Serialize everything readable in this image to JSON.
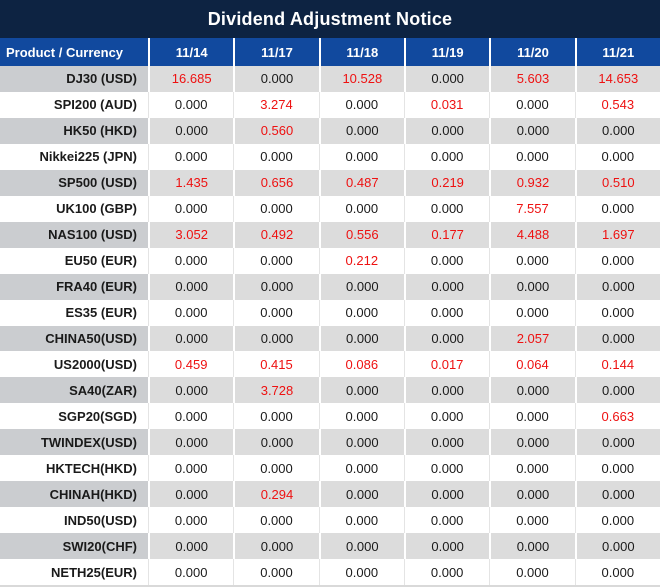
{
  "title": "Dividend Adjustment Notice",
  "colors": {
    "title_bar_bg": "#0d2342",
    "header_row_bg": "#11499e",
    "header_text": "#ffffff",
    "stripe_product_bg": "#cbcdd0",
    "stripe_value_bg": "#dcdcdc",
    "body_text": "#1a1a1a",
    "nonzero_value_text": "#ee1111"
  },
  "table": {
    "product_header": "Product / Currency",
    "date_headers": [
      "11/14",
      "11/17",
      "11/18",
      "11/19",
      "11/20",
      "11/21"
    ],
    "zero_display": "0.000",
    "rows": [
      {
        "product": "DJ30 (USD)",
        "values": [
          "16.685",
          "0.000",
          "10.528",
          "0.000",
          "5.603",
          "14.653"
        ]
      },
      {
        "product": "SPI200 (AUD)",
        "values": [
          "0.000",
          "3.274",
          "0.000",
          "0.031",
          "0.000",
          "0.543"
        ]
      },
      {
        "product": "HK50 (HKD)",
        "values": [
          "0.000",
          "0.560",
          "0.000",
          "0.000",
          "0.000",
          "0.000"
        ]
      },
      {
        "product": "Nikkei225 (JPN)",
        "values": [
          "0.000",
          "0.000",
          "0.000",
          "0.000",
          "0.000",
          "0.000"
        ]
      },
      {
        "product": "SP500 (USD)",
        "values": [
          "1.435",
          "0.656",
          "0.487",
          "0.219",
          "0.932",
          "0.510"
        ]
      },
      {
        "product": "UK100 (GBP)",
        "values": [
          "0.000",
          "0.000",
          "0.000",
          "0.000",
          "7.557",
          "0.000"
        ]
      },
      {
        "product": "NAS100 (USD)",
        "values": [
          "3.052",
          "0.492",
          "0.556",
          "0.177",
          "4.488",
          "1.697"
        ]
      },
      {
        "product": "EU50 (EUR)",
        "values": [
          "0.000",
          "0.000",
          "0.212",
          "0.000",
          "0.000",
          "0.000"
        ]
      },
      {
        "product": "FRA40 (EUR)",
        "values": [
          "0.000",
          "0.000",
          "0.000",
          "0.000",
          "0.000",
          "0.000"
        ]
      },
      {
        "product": "ES35 (EUR)",
        "values": [
          "0.000",
          "0.000",
          "0.000",
          "0.000",
          "0.000",
          "0.000"
        ]
      },
      {
        "product": "CHINA50(USD)",
        "values": [
          "0.000",
          "0.000",
          "0.000",
          "0.000",
          "2.057",
          "0.000"
        ]
      },
      {
        "product": "US2000(USD)",
        "values": [
          "0.459",
          "0.415",
          "0.086",
          "0.017",
          "0.064",
          "0.144"
        ]
      },
      {
        "product": "SA40(ZAR)",
        "values": [
          "0.000",
          "3.728",
          "0.000",
          "0.000",
          "0.000",
          "0.000"
        ]
      },
      {
        "product": "SGP20(SGD)",
        "values": [
          "0.000",
          "0.000",
          "0.000",
          "0.000",
          "0.000",
          "0.663"
        ]
      },
      {
        "product": "TWINDEX(USD)",
        "values": [
          "0.000",
          "0.000",
          "0.000",
          "0.000",
          "0.000",
          "0.000"
        ]
      },
      {
        "product": "HKTECH(HKD)",
        "values": [
          "0.000",
          "0.000",
          "0.000",
          "0.000",
          "0.000",
          "0.000"
        ]
      },
      {
        "product": "CHINAH(HKD)",
        "values": [
          "0.000",
          "0.294",
          "0.000",
          "0.000",
          "0.000",
          "0.000"
        ]
      },
      {
        "product": "IND50(USD)",
        "values": [
          "0.000",
          "0.000",
          "0.000",
          "0.000",
          "0.000",
          "0.000"
        ]
      },
      {
        "product": "SWI20(CHF)",
        "values": [
          "0.000",
          "0.000",
          "0.000",
          "0.000",
          "0.000",
          "0.000"
        ]
      },
      {
        "product": "NETH25(EUR)",
        "values": [
          "0.000",
          "0.000",
          "0.000",
          "0.000",
          "0.000",
          "0.000"
        ]
      }
    ]
  }
}
